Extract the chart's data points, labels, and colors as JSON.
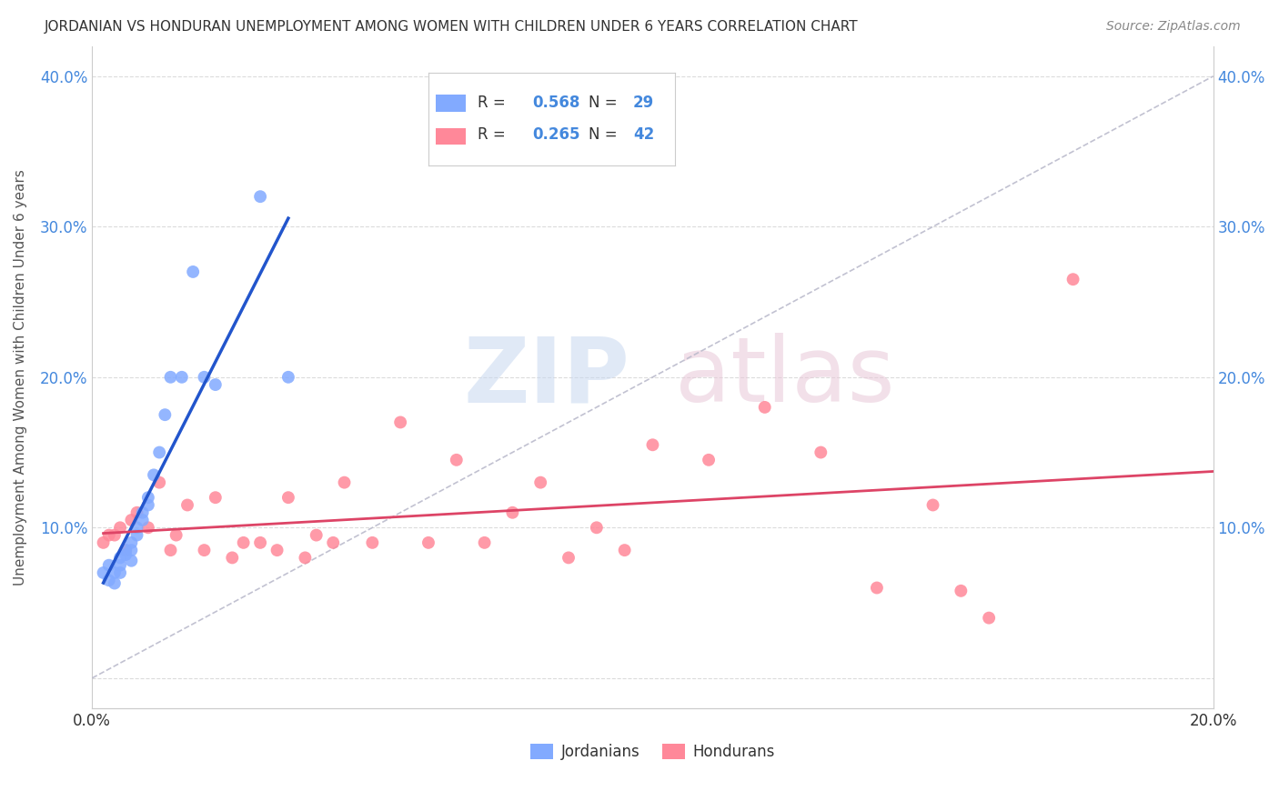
{
  "title": "JORDANIAN VS HONDURAN UNEMPLOYMENT AMONG WOMEN WITH CHILDREN UNDER 6 YEARS CORRELATION CHART",
  "source": "Source: ZipAtlas.com",
  "ylabel": "Unemployment Among Women with Children Under 6 years",
  "xlim": [
    0.0,
    0.2
  ],
  "ylim": [
    -0.02,
    0.42
  ],
  "ytick_positions": [
    0.0,
    0.1,
    0.2,
    0.3,
    0.4
  ],
  "ytick_labels": [
    "",
    "10.0%",
    "20.0%",
    "30.0%",
    "40.0%"
  ],
  "xtick_positions": [
    0.0,
    0.04,
    0.08,
    0.12,
    0.16,
    0.2
  ],
  "xtick_labels": [
    "0.0%",
    "",
    "",
    "",
    "",
    "20.0%"
  ],
  "legend_R1": "0.568",
  "legend_N1": "29",
  "legend_R2": "0.265",
  "legend_N2": "42",
  "jordan_color": "#82aaff",
  "jordan_line_color": "#2255cc",
  "honduran_color": "#ff8899",
  "honduran_line_color": "#dd4466",
  "diagonal_color": "#bbbbcc",
  "text_color": "#4488dd",
  "jordan_points_x": [
    0.002,
    0.003,
    0.003,
    0.004,
    0.004,
    0.005,
    0.005,
    0.005,
    0.006,
    0.006,
    0.007,
    0.007,
    0.007,
    0.008,
    0.008,
    0.009,
    0.009,
    0.01,
    0.01,
    0.011,
    0.012,
    0.013,
    0.014,
    0.016,
    0.018,
    0.02,
    0.022,
    0.03,
    0.035
  ],
  "jordan_points_y": [
    0.07,
    0.075,
    0.065,
    0.07,
    0.063,
    0.08,
    0.075,
    0.07,
    0.082,
    0.085,
    0.078,
    0.09,
    0.085,
    0.095,
    0.1,
    0.11,
    0.105,
    0.115,
    0.12,
    0.135,
    0.15,
    0.175,
    0.2,
    0.2,
    0.27,
    0.2,
    0.195,
    0.32,
    0.2
  ],
  "honduran_points_x": [
    0.002,
    0.003,
    0.004,
    0.005,
    0.006,
    0.007,
    0.008,
    0.01,
    0.012,
    0.014,
    0.015,
    0.017,
    0.02,
    0.022,
    0.025,
    0.027,
    0.03,
    0.033,
    0.035,
    0.038,
    0.04,
    0.043,
    0.045,
    0.05,
    0.055,
    0.06,
    0.065,
    0.07,
    0.075,
    0.08,
    0.085,
    0.09,
    0.095,
    0.1,
    0.11,
    0.12,
    0.13,
    0.14,
    0.15,
    0.155,
    0.16,
    0.175
  ],
  "honduran_points_y": [
    0.09,
    0.095,
    0.095,
    0.1,
    0.085,
    0.105,
    0.11,
    0.1,
    0.13,
    0.085,
    0.095,
    0.115,
    0.085,
    0.12,
    0.08,
    0.09,
    0.09,
    0.085,
    0.12,
    0.08,
    0.095,
    0.09,
    0.13,
    0.09,
    0.17,
    0.09,
    0.145,
    0.09,
    0.11,
    0.13,
    0.08,
    0.1,
    0.085,
    0.155,
    0.145,
    0.18,
    0.15,
    0.06,
    0.115,
    0.058,
    0.04,
    0.265
  ]
}
